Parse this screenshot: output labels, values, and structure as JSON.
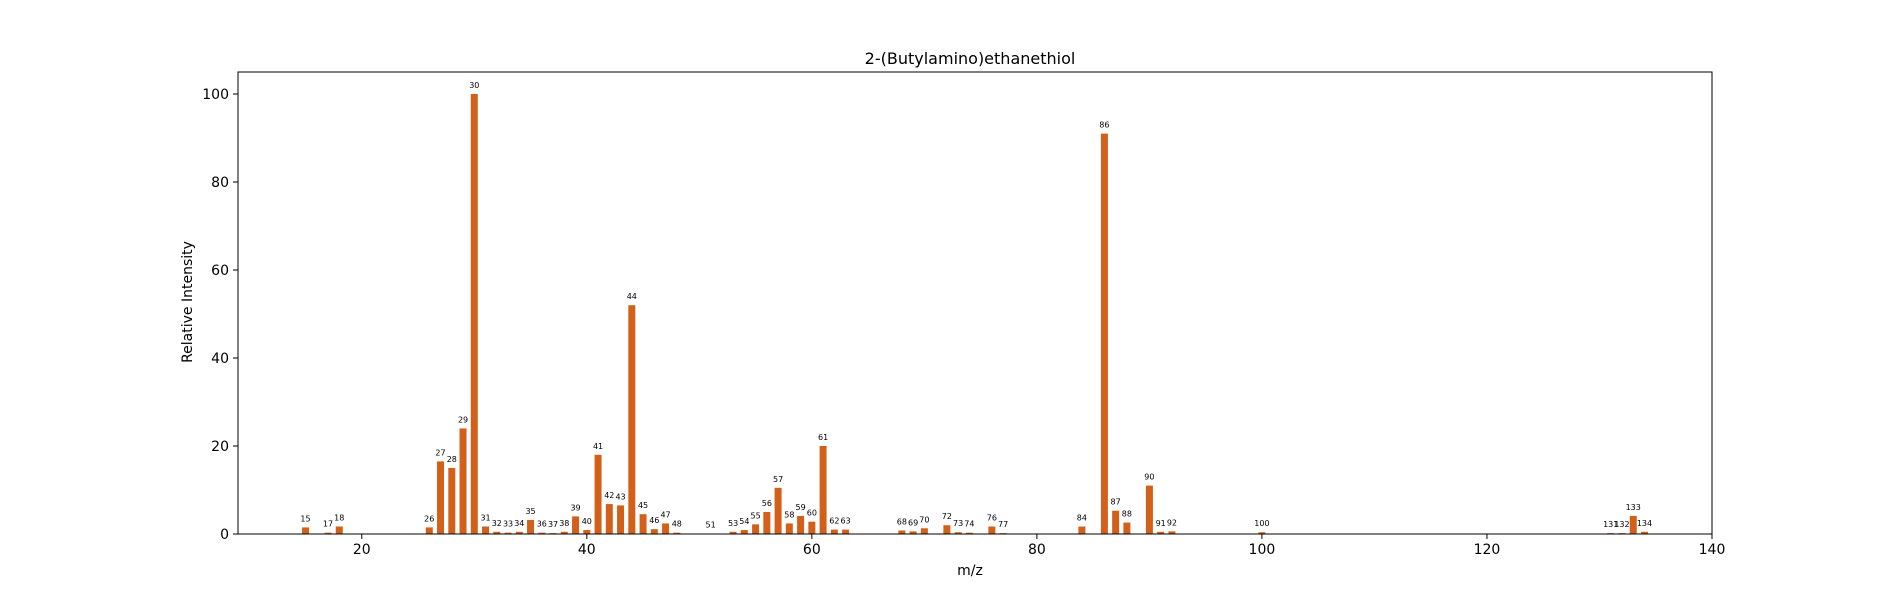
{
  "chart_data": {
    "type": "bar",
    "title": "2-(Butylamino)ethanethiol",
    "xlabel": "m/z",
    "ylabel": "Relative Intensity",
    "xlim": [
      9,
      140
    ],
    "ylim": [
      0,
      105
    ],
    "xticks": [
      20,
      40,
      60,
      80,
      100,
      120,
      140
    ],
    "yticks": [
      0,
      20,
      40,
      60,
      80,
      100
    ],
    "bar_color": "#d2601a",
    "grid": false,
    "x": [
      15,
      17,
      18,
      26,
      27,
      28,
      29,
      30,
      31,
      32,
      33,
      34,
      35,
      36,
      37,
      38,
      39,
      40,
      41,
      42,
      43,
      44,
      45,
      46,
      47,
      48,
      51,
      53,
      54,
      55,
      56,
      57,
      58,
      59,
      60,
      61,
      62,
      63,
      68,
      69,
      70,
      72,
      73,
      74,
      76,
      77,
      84,
      86,
      87,
      88,
      90,
      91,
      92,
      100,
      131,
      132,
      133,
      134
    ],
    "values": [
      1.5,
      0.3,
      1.7,
      1.5,
      16.5,
      15,
      24,
      100,
      1.7,
      0.5,
      0.3,
      0.5,
      3.2,
      0.3,
      0.2,
      0.5,
      4,
      0.9,
      18,
      6.8,
      6.5,
      52,
      4.5,
      1.1,
      2.4,
      0.3,
      0.1,
      0.5,
      0.9,
      2.2,
      5,
      10.5,
      2.4,
      4.1,
      2.8,
      20,
      1,
      1,
      0.8,
      0.6,
      1.3,
      2,
      0.4,
      0.3,
      1.7,
      0.2,
      1.7,
      91,
      5.3,
      2.6,
      11,
      0.5,
      0.6,
      0.4,
      0.2,
      0.2,
      4.1,
      0.5
    ],
    "labels": [
      "15",
      "17",
      "18",
      "26",
      "27",
      "28",
      "29",
      "30",
      "31",
      "32",
      "33",
      "34",
      "35",
      "36",
      "37",
      "38",
      "39",
      "40",
      "41",
      "42",
      "43",
      "44",
      "45",
      "46",
      "47",
      "48",
      "51",
      "53",
      "54",
      "55",
      "56",
      "57",
      "58",
      "59",
      "60",
      "61",
      "62",
      "63",
      "68",
      "69",
      "70",
      "72",
      "73",
      "74",
      "76",
      "77",
      "84",
      "86",
      "87",
      "88",
      "90",
      "91",
      "92",
      "100",
      "131",
      "132",
      "133",
      "134"
    ]
  }
}
